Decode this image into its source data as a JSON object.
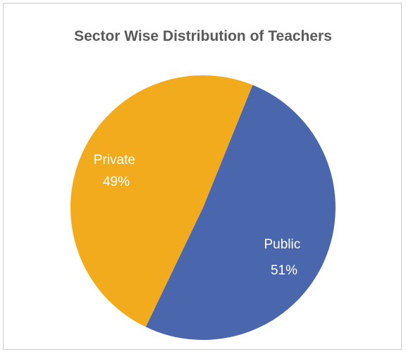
{
  "chart_data": {
    "type": "pie",
    "title": "Sector Wise Distribution of Teachers",
    "slices": [
      {
        "label": "Public",
        "percent_label": "51%",
        "value": 51,
        "color": "#4a67ad"
      },
      {
        "label": "Private",
        "percent_label": "49%",
        "value": 49,
        "color": "#f2ab1c"
      }
    ],
    "legend": "none",
    "data_labels": "inside"
  }
}
